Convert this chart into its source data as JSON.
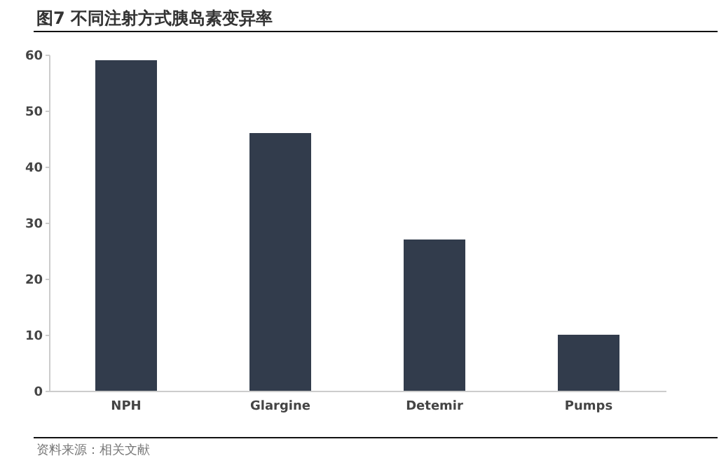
{
  "chart_data": {
    "type": "bar",
    "title": "图7 不同注射方式胰岛素变异率",
    "categories": [
      "NPH",
      "Glargine",
      "Detemir",
      "Pumps"
    ],
    "values": [
      59,
      46,
      27,
      10
    ],
    "color": "#323c4c",
    "ylim": [
      0,
      60
    ],
    "yticks": [
      0,
      10,
      20,
      30,
      40,
      50,
      60
    ],
    "grid": false,
    "annotations": [
      "资料来源：相关文献"
    ]
  }
}
